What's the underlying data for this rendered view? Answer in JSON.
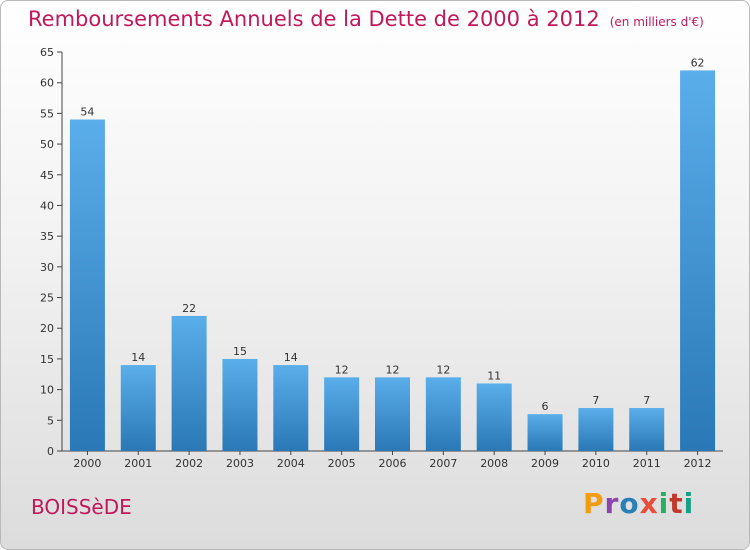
{
  "title": "Remboursements Annuels de la Dette de 2000 à 2012",
  "subtitle": "(en milliers d'€)",
  "place": "BOISSèDE",
  "logo": {
    "text": "Proxiti",
    "colors": [
      "#f39c12",
      "#8e44ad",
      "#2980b9",
      "#e74c3c",
      "#27ae60",
      "#c0392b",
      "#16a085"
    ]
  },
  "colors": {
    "bar_top": "#5aaeea",
    "bar_bottom": "#2a78b6",
    "accent": "#c2185b"
  },
  "chart_data": {
    "type": "bar",
    "categories": [
      "2000",
      "2001",
      "2002",
      "2003",
      "2004",
      "2005",
      "2006",
      "2007",
      "2008",
      "2009",
      "2010",
      "2011",
      "2012"
    ],
    "values": [
      54,
      14,
      22,
      15,
      14,
      12,
      12,
      12,
      11,
      6,
      7,
      7,
      62
    ],
    "ylim": [
      0,
      65
    ],
    "yticks": [
      0,
      5,
      10,
      15,
      20,
      25,
      30,
      35,
      40,
      45,
      50,
      55,
      60,
      65
    ],
    "grid": false,
    "xlabel": "",
    "ylabel": ""
  }
}
